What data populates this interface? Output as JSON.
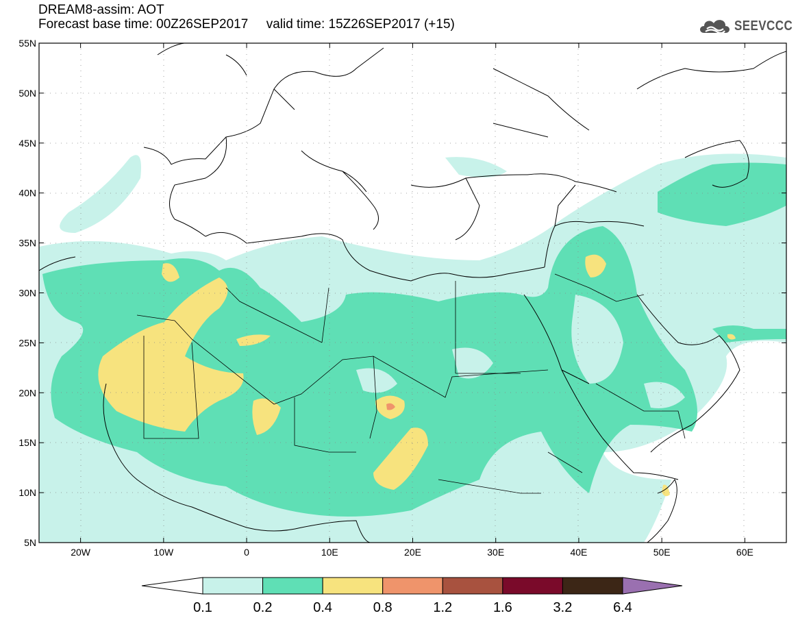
{
  "header": {
    "title": "DREAM8-assim: AOT",
    "base_time": "Forecast base time: 00Z26SEP2017",
    "valid_time": "valid time: 15Z26SEP2017 (+15)",
    "logo_text": "SEEVCCC"
  },
  "map": {
    "lon_range": [
      -25,
      65
    ],
    "lat_range": [
      5,
      55
    ],
    "lon_ticks": [
      {
        "value": -20,
        "label": "20W"
      },
      {
        "value": -10,
        "label": "10W"
      },
      {
        "value": 0,
        "label": "0"
      },
      {
        "value": 10,
        "label": "10E"
      },
      {
        "value": 20,
        "label": "20E"
      },
      {
        "value": 30,
        "label": "30E"
      },
      {
        "value": 40,
        "label": "40E"
      },
      {
        "value": 50,
        "label": "50E"
      },
      {
        "value": 60,
        "label": "60E"
      }
    ],
    "lat_ticks": [
      {
        "value": 5,
        "label": "5N"
      },
      {
        "value": 10,
        "label": "10N"
      },
      {
        "value": 15,
        "label": "15N"
      },
      {
        "value": 20,
        "label": "20N"
      },
      {
        "value": 25,
        "label": "25N"
      },
      {
        "value": 30,
        "label": "30N"
      },
      {
        "value": 35,
        "label": "35N"
      },
      {
        "value": 40,
        "label": "40N"
      },
      {
        "value": 45,
        "label": "45N"
      },
      {
        "value": 50,
        "label": "50N"
      },
      {
        "value": 55,
        "label": "55N"
      }
    ]
  },
  "colorbar": {
    "levels": [
      "0.1",
      "0.2",
      "0.4",
      "0.8",
      "1.2",
      "1.6",
      "3.2",
      "6.4"
    ],
    "colors": [
      "#c8f2ea",
      "#5fdfb5",
      "#f7e37e",
      "#ef946b",
      "#a8523f",
      "#7a0a2a",
      "#3c2616"
    ],
    "under_color": "#ffffff",
    "over_color": "#9a70b0"
  }
}
